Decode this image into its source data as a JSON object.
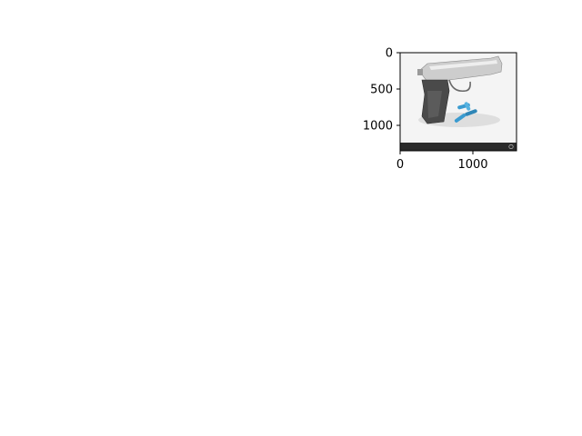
{
  "chart_data": {
    "type": "image",
    "title": "",
    "xlabel": "",
    "ylabel": "",
    "xlim": [
      0,
      1600
    ],
    "ylim": [
      1350,
      0
    ],
    "x_ticks": [
      {
        "value": 0,
        "label": "0"
      },
      {
        "value": 1000,
        "label": "1000"
      }
    ],
    "y_ticks": [
      {
        "value": 0,
        "label": "0"
      },
      {
        "value": 500,
        "label": "500"
      },
      {
        "value": 1000,
        "label": "1000"
      }
    ],
    "grid": false,
    "legend": "none",
    "image": {
      "subject": "silver semi-automatic pistol with three blue cartridges on a white background",
      "footer_band_color": "#2b2b2b",
      "background_color": "#f2f2f2",
      "gun_body_color": "#c8c8c8",
      "grip_color": "#4a4a4a",
      "cartridge_color": "#3a9bd0",
      "footer_left_text": "",
      "footer_right_text": "",
      "watermark_logo": "wallpaper logo"
    }
  }
}
